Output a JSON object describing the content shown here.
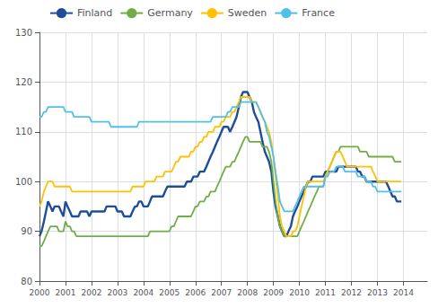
{
  "chart_data": {
    "type": "line",
    "x": [
      2000.0,
      2000.08,
      2000.17,
      2000.25,
      2000.33,
      2000.42,
      2000.5,
      2000.58,
      2000.67,
      2000.75,
      2000.83,
      2000.92,
      2001.0,
      2001.08,
      2001.17,
      2001.25,
      2001.33,
      2001.42,
      2001.5,
      2001.58,
      2001.67,
      2001.75,
      2001.83,
      2001.92,
      2002.0,
      2002.08,
      2002.17,
      2002.25,
      2002.33,
      2002.42,
      2002.5,
      2002.58,
      2002.67,
      2002.75,
      2002.83,
      2002.92,
      2003.0,
      2003.08,
      2003.17,
      2003.25,
      2003.33,
      2003.42,
      2003.5,
      2003.58,
      2003.67,
      2003.75,
      2003.83,
      2003.92,
      2004.0,
      2004.08,
      2004.17,
      2004.25,
      2004.33,
      2004.42,
      2004.5,
      2004.58,
      2004.67,
      2004.75,
      2004.83,
      2004.92,
      2005.0,
      2005.08,
      2005.17,
      2005.25,
      2005.33,
      2005.42,
      2005.5,
      2005.58,
      2005.67,
      2005.75,
      2005.83,
      2005.92,
      2006.0,
      2006.08,
      2006.17,
      2006.25,
      2006.33,
      2006.42,
      2006.5,
      2006.58,
      2006.67,
      2006.75,
      2006.83,
      2006.92,
      2007.0,
      2007.08,
      2007.17,
      2007.25,
      2007.33,
      2007.42,
      2007.5,
      2007.58,
      2007.67,
      2007.75,
      2007.83,
      2007.92,
      2008.0,
      2008.08,
      2008.17,
      2008.25,
      2008.33,
      2008.42,
      2008.5,
      2008.58,
      2008.67,
      2008.75,
      2008.83,
      2008.92,
      2009.0,
      2009.08,
      2009.17,
      2009.25,
      2009.33,
      2009.42,
      2009.5,
      2009.58,
      2009.67,
      2009.75,
      2009.83,
      2009.92,
      2010.0,
      2010.08,
      2010.17,
      2010.25,
      2010.33,
      2010.42,
      2010.5,
      2010.58,
      2010.67,
      2010.75,
      2010.83,
      2010.92,
      2011.0,
      2011.08,
      2011.17,
      2011.25,
      2011.33,
      2011.42,
      2011.5,
      2011.58,
      2011.67,
      2011.75,
      2011.83,
      2011.92,
      2012.0,
      2012.08,
      2012.17,
      2012.25,
      2012.33,
      2012.42,
      2012.5,
      2012.58,
      2012.67,
      2012.75,
      2012.83,
      2012.92,
      2013.0,
      2013.08,
      2013.17,
      2013.25,
      2013.33,
      2013.42,
      2013.5,
      2013.58,
      2013.67,
      2013.75,
      2013.83,
      2013.92
    ],
    "series": [
      {
        "name": "Finland",
        "color": "#1f4e99",
        "values": [
          89,
          90,
          92,
          94,
          96,
          95,
          94,
          95,
          95,
          95,
          94,
          93,
          96,
          95,
          94,
          93,
          93,
          93,
          93,
          94,
          94,
          94,
          94,
          93,
          94,
          94,
          94,
          94,
          94,
          94,
          94,
          95,
          95,
          95,
          95,
          95,
          94,
          94,
          94,
          93,
          93,
          93,
          93,
          94,
          95,
          95,
          96,
          96,
          95,
          95,
          95,
          96,
          97,
          97,
          97,
          97,
          97,
          97,
          98,
          99,
          99,
          99,
          99,
          99,
          99,
          99,
          99,
          99,
          100,
          100,
          100,
          101,
          101,
          101,
          102,
          102,
          102,
          103,
          104,
          105,
          106,
          107,
          108,
          109,
          110,
          111,
          111,
          111,
          110,
          111,
          112,
          113,
          115,
          117,
          118,
          118,
          118,
          117,
          116,
          114,
          113,
          112,
          110,
          108,
          106,
          105,
          104,
          102,
          98,
          95,
          93,
          91,
          90,
          89,
          89,
          90,
          91,
          93,
          94,
          95,
          96,
          97,
          98,
          99,
          100,
          100,
          101,
          101,
          101,
          101,
          101,
          101,
          102,
          102,
          102,
          102,
          102,
          102,
          103,
          103,
          103,
          103,
          103,
          103,
          103,
          103,
          103,
          102,
          102,
          101,
          101,
          100,
          100,
          100,
          100,
          100,
          100,
          100,
          100,
          100,
          100,
          99,
          98,
          97,
          97,
          96,
          96,
          96
        ]
      },
      {
        "name": "Germany",
        "color": "#70ad47",
        "values": [
          87,
          87,
          88,
          89,
          90,
          91,
          91,
          91,
          91,
          90,
          90,
          90,
          92,
          91,
          91,
          90,
          90,
          89,
          89,
          89,
          89,
          89,
          89,
          89,
          89,
          89,
          89,
          89,
          89,
          89,
          89,
          89,
          89,
          89,
          89,
          89,
          89,
          89,
          89,
          89,
          89,
          89,
          89,
          89,
          89,
          89,
          89,
          89,
          89,
          89,
          89,
          90,
          90,
          90,
          90,
          90,
          90,
          90,
          90,
          90,
          90,
          91,
          91,
          92,
          93,
          93,
          93,
          93,
          93,
          93,
          93,
          94,
          95,
          95,
          96,
          96,
          96,
          97,
          97,
          98,
          98,
          98,
          99,
          100,
          101,
          102,
          103,
          103,
          103,
          104,
          104,
          105,
          106,
          107,
          108,
          109,
          109,
          108,
          108,
          108,
          108,
          108,
          108,
          107,
          107,
          107,
          106,
          104,
          100,
          96,
          93,
          91,
          90,
          89,
          89,
          89,
          89,
          89,
          89,
          89,
          90,
          91,
          92,
          93,
          94,
          95,
          96,
          97,
          98,
          99,
          99,
          99,
          101,
          102,
          103,
          104,
          105,
          106,
          106,
          107,
          107,
          107,
          107,
          107,
          107,
          107,
          107,
          107,
          106,
          106,
          106,
          106,
          105,
          105,
          105,
          105,
          105,
          105,
          105,
          105,
          105,
          105,
          105,
          105,
          104,
          104,
          104,
          104
        ]
      },
      {
        "name": "Sweden",
        "color": "#ffc000",
        "values": [
          95,
          96,
          98,
          99,
          100,
          100,
          100,
          99,
          99,
          99,
          99,
          99,
          99,
          99,
          99,
          98,
          98,
          98,
          98,
          98,
          98,
          98,
          98,
          98,
          98,
          98,
          98,
          98,
          98,
          98,
          98,
          98,
          98,
          98,
          98,
          98,
          98,
          98,
          98,
          98,
          98,
          98,
          98,
          99,
          99,
          99,
          99,
          99,
          99,
          100,
          100,
          100,
          100,
          100,
          101,
          101,
          101,
          101,
          102,
          102,
          102,
          102,
          103,
          104,
          104,
          105,
          105,
          105,
          105,
          105,
          106,
          106,
          107,
          107,
          108,
          108,
          109,
          109,
          110,
          110,
          110,
          111,
          111,
          111,
          112,
          112,
          113,
          113,
          113,
          114,
          114,
          115,
          116,
          117,
          117,
          117,
          117,
          117,
          116,
          116,
          116,
          115,
          114,
          113,
          112,
          111,
          110,
          108,
          105,
          101,
          97,
          93,
          91,
          90,
          89,
          89,
          89,
          90,
          90,
          91,
          93,
          95,
          97,
          99,
          100,
          100,
          100,
          100,
          100,
          100,
          100,
          100,
          101,
          102,
          103,
          104,
          105,
          106,
          106,
          106,
          105,
          104,
          103,
          103,
          103,
          103,
          103,
          103,
          103,
          103,
          103,
          103,
          103,
          103,
          102,
          101,
          100,
          100,
          100,
          100,
          100,
          100,
          100,
          100,
          100,
          100,
          100,
          100
        ]
      },
      {
        "name": "France",
        "color": "#4fc1e9",
        "values": [
          113,
          113,
          114,
          114,
          115,
          115,
          115,
          115,
          115,
          115,
          115,
          115,
          114,
          114,
          114,
          114,
          113,
          113,
          113,
          113,
          113,
          113,
          113,
          113,
          112,
          112,
          112,
          112,
          112,
          112,
          112,
          112,
          112,
          111,
          111,
          111,
          111,
          111,
          111,
          111,
          111,
          111,
          111,
          111,
          111,
          111,
          112,
          112,
          112,
          112,
          112,
          112,
          112,
          112,
          112,
          112,
          112,
          112,
          112,
          112,
          112,
          112,
          112,
          112,
          112,
          112,
          112,
          112,
          112,
          112,
          112,
          112,
          112,
          112,
          112,
          112,
          112,
          112,
          112,
          112,
          113,
          113,
          113,
          113,
          113,
          113,
          113,
          114,
          114,
          115,
          115,
          115,
          115,
          116,
          116,
          116,
          116,
          116,
          116,
          116,
          116,
          115,
          114,
          113,
          112,
          110,
          109,
          107,
          105,
          102,
          99,
          96,
          95,
          94,
          94,
          94,
          94,
          94,
          95,
          96,
          97,
          98,
          99,
          99,
          99,
          99,
          99,
          99,
          99,
          99,
          99,
          99,
          101,
          101,
          102,
          102,
          102,
          103,
          103,
          103,
          103,
          102,
          102,
          102,
          102,
          102,
          102,
          101,
          101,
          101,
          101,
          100,
          100,
          100,
          99,
          99,
          98,
          98,
          98,
          98,
          98,
          98,
          98,
          98,
          98,
          98,
          98,
          98
        ]
      }
    ],
    "xlim": [
      2000.0,
      2014.917
    ],
    "xticks": [
      2000,
      2001,
      2002,
      2003,
      2004,
      2005,
      2006,
      2007,
      2008,
      2009,
      2010,
      2011,
      2012,
      2013,
      2014
    ],
    "ylim": [
      80,
      130
    ],
    "yticks": [
      80,
      90,
      100,
      110,
      120,
      130
    ],
    "grid": true,
    "legend": "upper left"
  }
}
